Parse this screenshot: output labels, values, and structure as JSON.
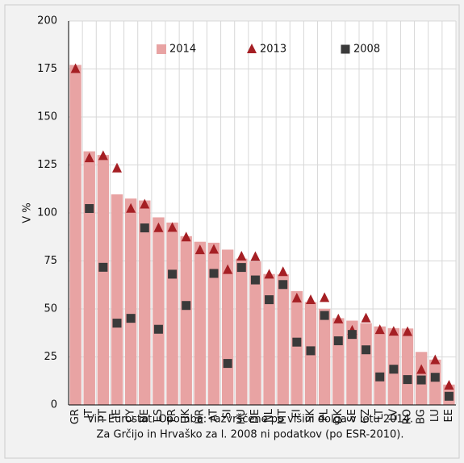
{
  "chart_data": {
    "type": "bar",
    "y_label": "V %",
    "notes": [
      "Vir: Eurostat. Opomba: razvrščene po višini dolga v letu 2014.",
      "Za Grčijo in Hrvaško za l. 2008 ni podatkov (po ESR-2010)."
    ],
    "categories": [
      "GR",
      "IT",
      "PT",
      "IE",
      "CY",
      "BE",
      "ES",
      "FR",
      "UK",
      "HR",
      "AT",
      "SI",
      "HU",
      "DE",
      "NL",
      "MT",
      "FI",
      "SK",
      "PL",
      "DK",
      "SE",
      "CZ",
      "LT",
      "LV",
      "RO",
      "BG",
      "LU",
      "EE"
    ],
    "series": [
      {
        "name": "2014",
        "color": "#e8a3a3",
        "marker": "bar",
        "values": [
          177.1,
          132.1,
          130.2,
          109.7,
          107.5,
          106.5,
          97.7,
          95,
          87.9,
          85,
          84.5,
          80.9,
          76.2,
          74.7,
          68.2,
          68,
          59.3,
          53.6,
          50.1,
          45.2,
          43.9,
          42.6,
          40.9,
          40,
          39.8,
          27.6,
          23.6,
          10.6
        ]
      },
      {
        "name": "2013",
        "color": "#a51f24",
        "marker": "triangle",
        "values": [
          175,
          128.5,
          129.7,
          123.2,
          102.2,
          104.4,
          92.1,
          92.3,
          87.3,
          80.6,
          80.9,
          70.3,
          77.3,
          77.1,
          67.9,
          69.2,
          55.5,
          54.6,
          55.7,
          44.6,
          38.7,
          45.1,
          39,
          38.2,
          38,
          18.3,
          23.3,
          10.1
        ]
      },
      {
        "name": "2008",
        "color": "#3a3a3a",
        "marker": "square",
        "values": [
          null,
          102.3,
          71.7,
          42.6,
          45.1,
          92.2,
          39.4,
          68.1,
          51.8,
          null,
          68.5,
          21.6,
          71.6,
          65.1,
          54.8,
          62.7,
          32.7,
          28.2,
          46.6,
          33.4,
          36.7,
          28.7,
          14.6,
          18.6,
          13.2,
          13,
          14.4,
          4.5
        ]
      }
    ],
    "ylim": [
      0,
      200
    ],
    "yticks": [
      0,
      25,
      50,
      75,
      100,
      125,
      150,
      175,
      200
    ],
    "grid": true
  }
}
